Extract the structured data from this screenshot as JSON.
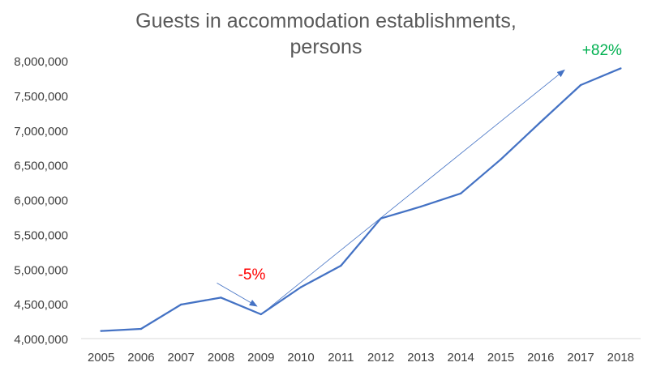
{
  "chart_data": {
    "type": "line",
    "title_line1": "Guests in accommodation establishments,",
    "title_line2": "persons",
    "xlabel": "",
    "ylabel": "",
    "x": [
      "2005",
      "2006",
      "2007",
      "2008",
      "2009",
      "2010",
      "2011",
      "2012",
      "2013",
      "2014",
      "2015",
      "2016",
      "2017",
      "2018"
    ],
    "series": [
      {
        "values": [
          4110000,
          4140000,
          4490000,
          4590000,
          4350000,
          4740000,
          5050000,
          5730000,
          5900000,
          6090000,
          6580000,
          7120000,
          7650000,
          7890000
        ]
      }
    ],
    "yticks": [
      "4,000,000",
      "4,500,000",
      "5,000,000",
      "5,500,000",
      "6,000,000",
      "6,500,000",
      "7,000,000",
      "7,500,000",
      "8,000,000"
    ],
    "ylim": [
      4000000,
      8000000
    ],
    "grid": false,
    "annotations": [
      {
        "label": "-5%",
        "color": "#ff0000",
        "from_year": "2008",
        "to_year": "2009"
      },
      {
        "label": "+82%",
        "color": "#00b050",
        "from_year": "2009",
        "to_year": "2018"
      }
    ],
    "line_color": "#4472c4",
    "axis_text_color": "#404040"
  }
}
